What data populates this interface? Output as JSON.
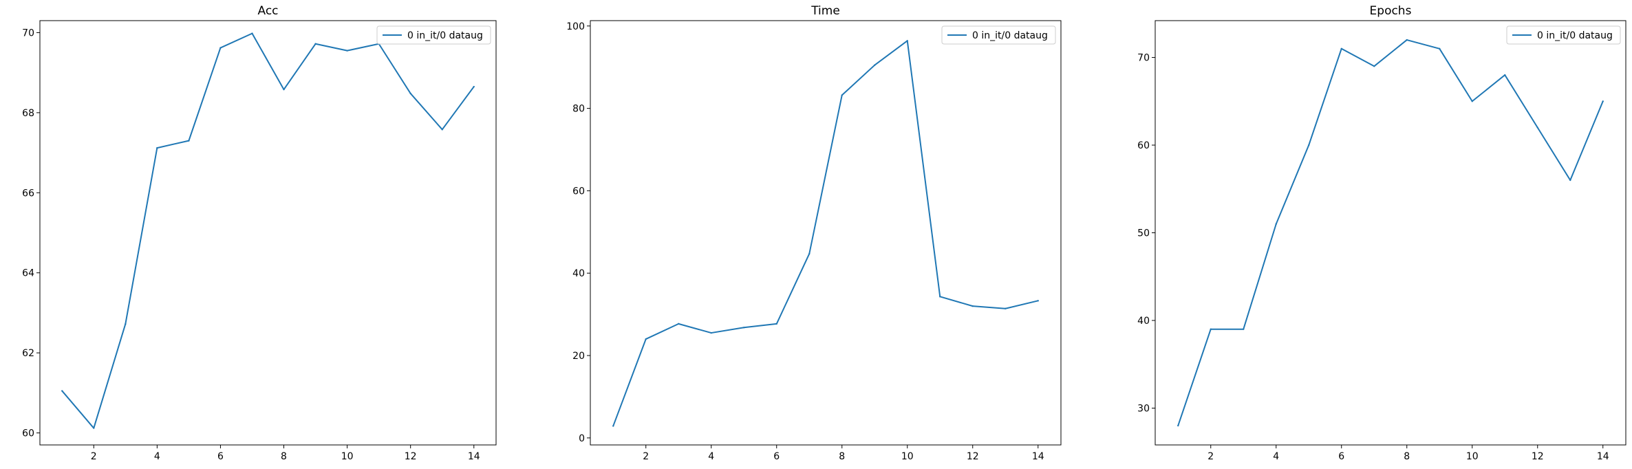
{
  "colors": {
    "series": "#1f77b4",
    "axes": "#000000",
    "legend_border": "#cccccc"
  },
  "chart_data": [
    {
      "type": "line",
      "title": "Acc",
      "xlabel": "",
      "ylabel": "",
      "xlim": [
        0.3,
        14.7
      ],
      "ylim": [
        59.7,
        70.3
      ],
      "xticks": [
        2,
        4,
        6,
        8,
        10,
        12,
        14
      ],
      "yticks": [
        60,
        62,
        64,
        66,
        68,
        70
      ],
      "grid": false,
      "legend_position": "top-right",
      "series": [
        {
          "name": "0 in_it/0 dataug",
          "x": [
            1,
            2,
            3,
            4,
            5,
            6,
            7,
            8,
            9,
            10,
            11,
            12,
            13,
            14
          ],
          "y": [
            61.05,
            60.12,
            62.72,
            67.12,
            67.3,
            69.62,
            69.98,
            68.58,
            69.72,
            69.55,
            69.72,
            68.48,
            67.58,
            68.65
          ]
        }
      ]
    },
    {
      "type": "line",
      "title": "Time",
      "xlabel": "",
      "ylabel": "",
      "xlim": [
        0.3,
        14.7
      ],
      "ylim": [
        -1.7,
        101.3
      ],
      "xticks": [
        2,
        4,
        6,
        8,
        10,
        12,
        14
      ],
      "yticks": [
        0,
        20,
        40,
        60,
        80,
        100
      ],
      "grid": false,
      "legend_position": "top-right",
      "series": [
        {
          "name": "0 in_it/0 dataug",
          "x": [
            1,
            2,
            3,
            4,
            5,
            6,
            7,
            8,
            9,
            10,
            11,
            12,
            13,
            14
          ],
          "y": [
            2.9,
            24.0,
            27.7,
            25.5,
            26.8,
            27.7,
            44.7,
            83.2,
            90.5,
            96.4,
            34.3,
            32.0,
            31.4,
            33.3
          ]
        }
      ]
    },
    {
      "type": "line",
      "title": "Epochs",
      "xlabel": "",
      "ylabel": "",
      "xlim": [
        0.3,
        14.7
      ],
      "ylim": [
        25.8,
        74.2
      ],
      "xticks": [
        2,
        4,
        6,
        8,
        10,
        12,
        14
      ],
      "yticks": [
        30,
        40,
        50,
        60,
        70
      ],
      "grid": false,
      "legend_position": "top-right",
      "series": [
        {
          "name": "0 in_it/0 dataug",
          "x": [
            1,
            2,
            3,
            4,
            5,
            6,
            7,
            8,
            9,
            10,
            11,
            12,
            13,
            14
          ],
          "y": [
            28,
            39,
            39,
            51,
            60,
            71,
            69,
            72,
            71,
            65,
            68,
            62,
            56,
            65
          ]
        }
      ]
    }
  ]
}
